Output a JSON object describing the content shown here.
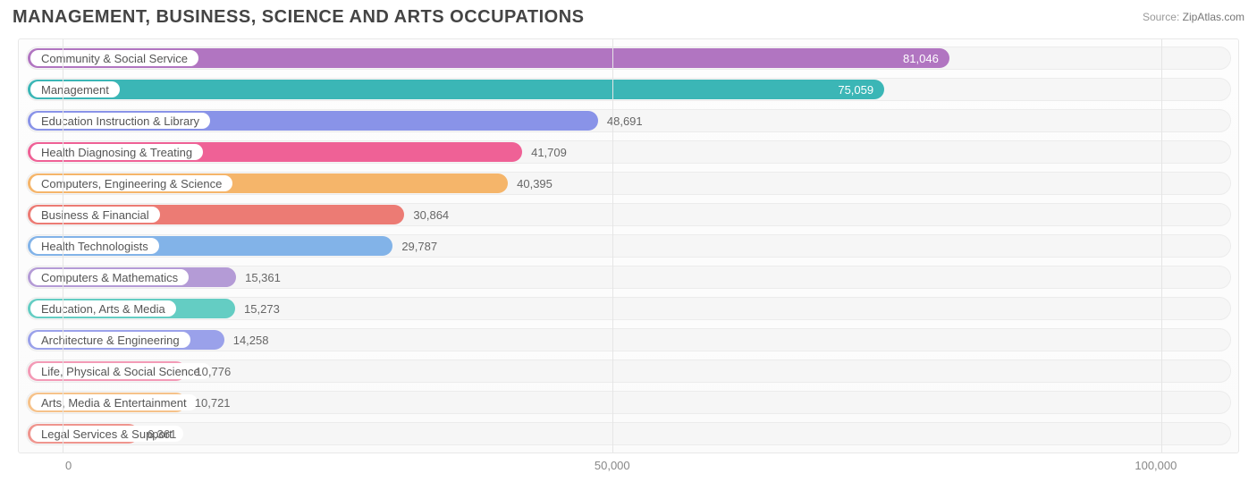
{
  "title": "MANAGEMENT, BUSINESS, SCIENCE AND ARTS OCCUPATIONS",
  "source": {
    "label": "Source:",
    "brand": "ZipAtlas.com"
  },
  "chart": {
    "type": "bar-horizontal",
    "background_color": "#ffffff",
    "track_color": "#f6f6f6",
    "grid_color": "#e5e5e5",
    "text_color": "#555555",
    "value_outside_color": "#666666",
    "value_inside_color": "#ffffff",
    "xmin": -4000,
    "xmax": 107000,
    "ticks": [
      {
        "value": 0,
        "label": "0"
      },
      {
        "value": 50000,
        "label": "50,000"
      },
      {
        "value": 100000,
        "label": "100,000"
      }
    ],
    "bars": [
      {
        "label": "Community & Social Service",
        "value": 81046,
        "display": "81,046",
        "color": "#b175c1",
        "value_inside": true
      },
      {
        "label": "Management",
        "value": 75059,
        "display": "75,059",
        "color": "#3bb6b6",
        "value_inside": true
      },
      {
        "label": "Education Instruction & Library",
        "value": 48691,
        "display": "48,691",
        "color": "#8993e8",
        "value_inside": false
      },
      {
        "label": "Health Diagnosing & Treating",
        "value": 41709,
        "display": "41,709",
        "color": "#ef6196",
        "value_inside": false
      },
      {
        "label": "Computers, Engineering & Science",
        "value": 40395,
        "display": "40,395",
        "color": "#f5b56a",
        "value_inside": false
      },
      {
        "label": "Business & Financial",
        "value": 30864,
        "display": "30,864",
        "color": "#ec7b74",
        "value_inside": false
      },
      {
        "label": "Health Technologists",
        "value": 29787,
        "display": "29,787",
        "color": "#82b3e8",
        "value_inside": false
      },
      {
        "label": "Computers & Mathematics",
        "value": 15361,
        "display": "15,361",
        "color": "#b49bd6",
        "value_inside": false
      },
      {
        "label": "Education, Arts & Media",
        "value": 15273,
        "display": "15,273",
        "color": "#64cdc3",
        "value_inside": false
      },
      {
        "label": "Architecture & Engineering",
        "value": 14258,
        "display": "14,258",
        "color": "#9aa1ea",
        "value_inside": false
      },
      {
        "label": "Life, Physical & Social Science",
        "value": 10776,
        "display": "10,776",
        "color": "#f39ab6",
        "value_inside": false
      },
      {
        "label": "Arts, Media & Entertainment",
        "value": 10721,
        "display": "10,721",
        "color": "#f6c28a",
        "value_inside": false
      },
      {
        "label": "Legal Services & Support",
        "value": 6361,
        "display": "6,361",
        "color": "#ef958e",
        "value_inside": false
      }
    ]
  }
}
